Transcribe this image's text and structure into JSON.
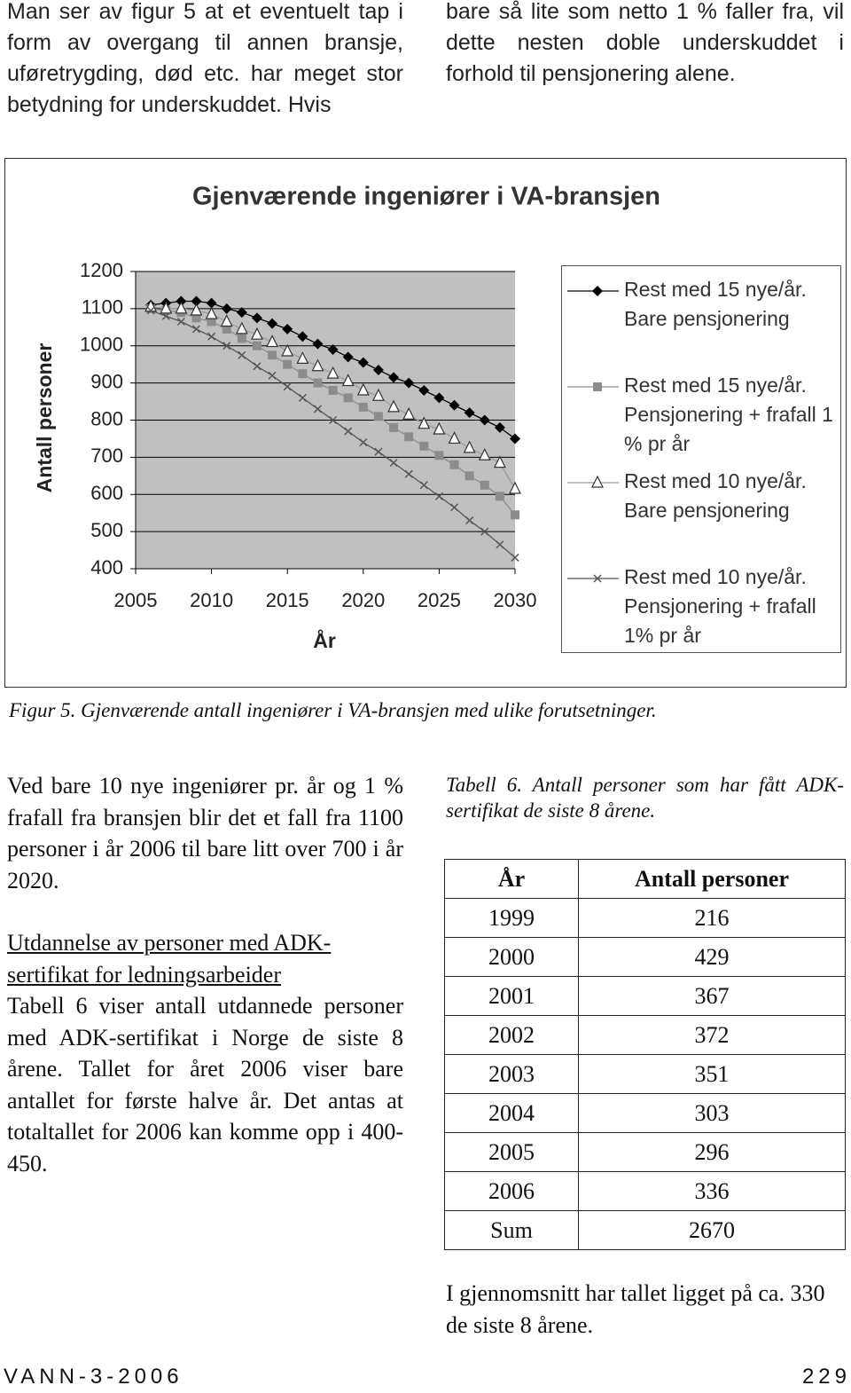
{
  "top": {
    "left": "Man ser av figur 5 at et eventuelt tap i form av overgang til annen bransje, uføretrygding, død etc. har meget stor betydning for underskuddet. Hvis",
    "right": "bare så lite som netto 1 % faller fra, vil dette nesten doble underskuddet i forhold til pensjonering alene."
  },
  "chart_data": {
    "type": "line",
    "title": "Gjenværende ingeniører i VA-bransjen",
    "x_label": "År",
    "y_label": "Antall personer",
    "x": [
      2006,
      2007,
      2008,
      2009,
      2010,
      2011,
      2012,
      2013,
      2014,
      2015,
      2016,
      2017,
      2018,
      2019,
      2020,
      2021,
      2022,
      2023,
      2024,
      2025,
      2026,
      2027,
      2028,
      2029,
      2030
    ],
    "series": [
      {
        "name": "Rest med 15 nye/år. Bare pensjonering",
        "color": "#000000",
        "marker": "diamond",
        "values": [
          1110,
          1115,
          1120,
          1120,
          1115,
          1100,
          1090,
          1075,
          1060,
          1045,
          1025,
          1005,
          990,
          970,
          955,
          935,
          915,
          900,
          880,
          860,
          840,
          820,
          800,
          780,
          750
        ]
      },
      {
        "name": "Rest med 15 nye/år. Pensjonering + frafall 1 % pr år",
        "color": "#8c8c8c",
        "marker": "square",
        "values": [
          1100,
          1095,
          1090,
          1075,
          1065,
          1045,
          1020,
          1000,
          975,
          950,
          925,
          900,
          880,
          860,
          835,
          810,
          780,
          755,
          730,
          705,
          680,
          650,
          625,
          595,
          545
        ]
      },
      {
        "name": "Rest med 10 nye/år. Bare pensjonering",
        "color": "#ffffff",
        "marker": "triangle",
        "values": [
          1105,
          1100,
          1100,
          1095,
          1085,
          1065,
          1045,
          1030,
          1010,
          985,
          965,
          945,
          925,
          905,
          880,
          865,
          835,
          815,
          790,
          775,
          750,
          725,
          705,
          685,
          615
        ]
      },
      {
        "name": "Rest med 10 nye/år. Pensjonering + frafall 1% pr år",
        "color": "#555555",
        "marker": "x",
        "values": [
          1095,
          1080,
          1065,
          1045,
          1025,
          1000,
          975,
          945,
          920,
          890,
          860,
          830,
          800,
          770,
          740,
          715,
          685,
          655,
          625,
          595,
          565,
          530,
          500,
          465,
          430
        ]
      }
    ],
    "xlim": [
      2005,
      2030
    ],
    "xticks": [
      2005,
      2010,
      2015,
      2020,
      2025,
      2030
    ],
    "ylim": [
      400,
      1200
    ],
    "yticks": [
      400,
      500,
      600,
      700,
      800,
      900,
      1000,
      1100,
      1200
    ],
    "grid": true,
    "plot_background": "#c0c0c0",
    "legend": "right"
  },
  "figure_caption": "Figur 5. Gjenværende antall ingeniører i VA-bransjen med ulike forutsetninger.",
  "left_column": {
    "paragraph_1": "Ved bare 10 nye ingeniører pr. år og 1 % frafall fra bransjen blir det et fall fra 1100 personer i år 2006 til bare litt over 700 i år 2020.",
    "heading": "Utdannelse av personer med ADK-sertifikat for ledningsarbeider",
    "paragraph_2": "Tabell 6 viser antall utdannede personer med ADK-sertifikat i Norge de siste 8 årene. Tallet for året 2006 viser bare antallet for første halve år. Det antas at totaltallet for 2006 kan komme opp i 400-450."
  },
  "table": {
    "caption": "Tabell 6. Antall personer som har fått ADK-sertifikat de siste 8 årene.",
    "header": [
      "År",
      "Antall personer"
    ],
    "rows": [
      [
        "1999",
        "216"
      ],
      [
        "2000",
        "429"
      ],
      [
        "2001",
        "367"
      ],
      [
        "2002",
        "372"
      ],
      [
        "2003",
        "351"
      ],
      [
        "2004",
        "303"
      ],
      [
        "2005",
        "296"
      ],
      [
        "2006",
        "336"
      ],
      [
        "Sum",
        "2670"
      ]
    ]
  },
  "right_note": "I gjennomsnitt har tallet ligget på ca. 330 de siste 8 årene.",
  "footer": {
    "journal": "VANN-3-2006",
    "page": "229"
  }
}
